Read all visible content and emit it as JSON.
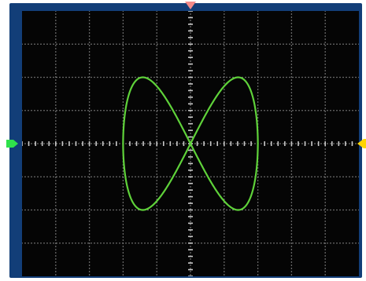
{
  "scope": {
    "colors": {
      "bezel": "#123e78",
      "screen": "#050505",
      "grid": "#9a9a9a",
      "trace": "#5fd23a",
      "trigger_marker": "#f28a8a",
      "ch1_marker": "#2fe14b",
      "trigger_level_marker": "#ffd400"
    },
    "grid": {
      "horizontal_divisions": 10,
      "vertical_divisions": 8,
      "minor_ticks_per_division": 5
    },
    "markers": [
      {
        "name": "trigger-position-marker",
        "icon": "triangle-down-icon"
      },
      {
        "name": "channel-1-marker",
        "icon": "arrow-right-icon"
      },
      {
        "name": "trigger-level-marker",
        "icon": "arrow-left-icon"
      }
    ],
    "trace": {
      "mode": "XY",
      "shape": "lissajous-figure-eight",
      "x_amplitude_div": 2.0,
      "y_amplitude_div": 2.0,
      "frequency_ratio": "1:2"
    }
  }
}
